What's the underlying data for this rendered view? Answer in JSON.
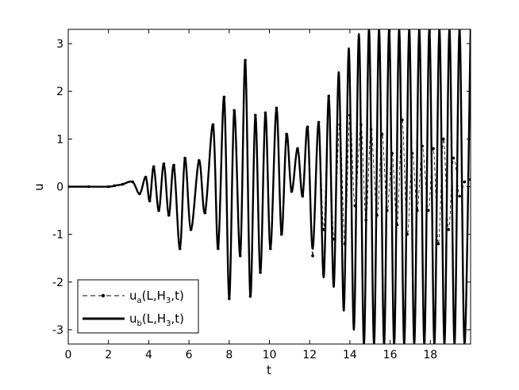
{
  "chart_data": {
    "type": "line",
    "xlabel": "t",
    "ylabel": "u",
    "xlim": [
      0,
      20
    ],
    "ylim": [
      -3.3,
      3.3
    ],
    "xticks": [
      "0",
      "2",
      "4",
      "6",
      "8",
      "10",
      "12",
      "14",
      "16",
      "18"
    ],
    "yticks": [
      "-3",
      "-2",
      "-1",
      "0",
      "1",
      "2",
      "3"
    ],
    "grid": false,
    "legend_position": "bottom-left",
    "legend": [
      {
        "main": "u",
        "sub1": "a",
        "mid": "(L,H",
        "sub2": "3",
        "end": ",t)",
        "style": "dashed-dots"
      },
      {
        "main": "u",
        "sub1": "b",
        "mid": "(L,H",
        "sub2": "3",
        "end": ",t)",
        "style": "thick-solid"
      }
    ],
    "series": [
      {
        "style": "dashed-dots",
        "x": [
          0,
          1,
          2,
          2.3,
          2.7,
          3.2,
          3.55,
          3.85,
          4.05,
          4.25,
          4.5,
          4.75,
          5.0,
          5.25,
          5.55,
          5.8,
          6.1,
          6.5,
          6.8,
          7.2,
          7.45,
          7.75,
          8.0,
          8.25,
          8.55,
          8.8,
          9.05,
          9.3,
          9.55,
          9.8,
          10.05,
          10.35,
          10.6,
          10.85,
          11.1,
          11.4,
          11.65,
          11.9,
          12.15,
          12.45,
          12.7,
          12.95,
          13.2,
          13.5,
          13.75,
          14.0,
          14.25,
          14.55,
          14.8,
          15.05,
          15.35,
          15.6,
          15.85,
          16.1,
          16.35,
          16.6,
          16.85,
          17.1,
          17.35,
          17.6,
          17.9,
          18.15,
          18.4,
          18.65,
          18.9,
          19.15,
          19.45,
          19.7,
          20.0
        ],
        "y": [
          0,
          0,
          0,
          0.02,
          0.05,
          0.1,
          -0.15,
          0.2,
          -0.3,
          0.42,
          -0.5,
          0.48,
          -0.6,
          0.45,
          -1.3,
          0.6,
          -0.9,
          0.55,
          -0.55,
          1.3,
          -1.3,
          1.88,
          -2.35,
          1.6,
          -1.45,
          2.65,
          -2.3,
          1.5,
          -1.8,
          1.55,
          -1.3,
          1.65,
          -1.0,
          1.1,
          -0.1,
          0.8,
          -0.2,
          1.25,
          -1.45,
          1.35,
          -0.9,
          1.9,
          -1.1,
          1.3,
          -1.2,
          1.5,
          -0.4,
          1.3,
          -0.7,
          1.2,
          -0.6,
          1.1,
          -0.5,
          0.7,
          -0.8,
          1.4,
          -1.0,
          0.7,
          -0.5,
          0.85,
          -0.5,
          0.8,
          -1.2,
          1.0,
          -0.9,
          0.6,
          -0.2,
          0.1,
          0.15
        ]
      },
      {
        "style": "thick-solid",
        "x": [
          0,
          1,
          2,
          2.3,
          2.7,
          3.2,
          3.55,
          3.85,
          4.05,
          4.25,
          4.5,
          4.75,
          5.0,
          5.25,
          5.55,
          5.8,
          6.1,
          6.5,
          6.8,
          7.2,
          7.45,
          7.75,
          8.0,
          8.25,
          8.55,
          8.8,
          9.05,
          9.3,
          9.55,
          9.8,
          10.05,
          10.35,
          10.6,
          10.85,
          11.1,
          11.4,
          11.65,
          11.9,
          12.15,
          12.45,
          12.7,
          12.95,
          13.2,
          13.45,
          13.7,
          13.95,
          14.2,
          14.45,
          14.7,
          14.95,
          15.2,
          15.45,
          15.7,
          15.95,
          16.2,
          16.45,
          16.7,
          16.95,
          17.2,
          17.45,
          17.7,
          17.95,
          18.2,
          18.45,
          18.7,
          18.95,
          19.2,
          19.45,
          19.7,
          20.0
        ],
        "y": [
          0,
          0,
          0,
          0.02,
          0.05,
          0.1,
          -0.15,
          0.2,
          -0.3,
          0.42,
          -0.5,
          0.48,
          -0.6,
          0.45,
          -1.3,
          0.6,
          -0.9,
          0.55,
          -0.55,
          1.3,
          -1.3,
          1.88,
          -2.35,
          1.6,
          -1.45,
          2.65,
          -2.3,
          1.5,
          -1.8,
          1.55,
          -1.3,
          1.65,
          -1.0,
          1.1,
          -0.1,
          0.8,
          -0.2,
          1.25,
          -1.3,
          1.35,
          -1.9,
          1.9,
          -2.1,
          2.4,
          -2.6,
          2.9,
          -3.0,
          3.2,
          -3.3,
          3.3,
          -3.3,
          3.3,
          -3.3,
          3.3,
          -3.3,
          3.3,
          -3.3,
          3.3,
          -3.3,
          3.3,
          -3.3,
          3.3,
          -3.3,
          3.3,
          -3.3,
          3.3,
          -3.3,
          3.3,
          -3.3,
          3.3
        ]
      }
    ]
  }
}
